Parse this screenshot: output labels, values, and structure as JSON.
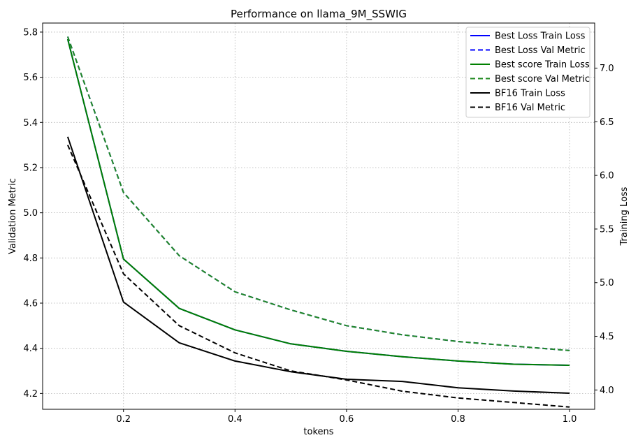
{
  "chart_data": {
    "type": "line",
    "title": "Performance on llama_9M_SSWIG",
    "xlabel": "tokens",
    "ylabel_left": "Validation Metric",
    "ylabel_right": "Training Loss",
    "x": [
      0.1,
      0.2,
      0.3,
      0.4,
      0.5,
      0.6,
      0.7,
      0.8,
      0.9,
      1.0
    ],
    "xlim": [
      0.055,
      1.045
    ],
    "ylim_left": [
      4.13,
      5.84
    ],
    "ylim_right": [
      3.82,
      7.42
    ],
    "x_ticks": [
      0.2,
      0.4,
      0.6,
      0.8,
      1.0
    ],
    "x_tick_labels": [
      "0.2",
      "0.4",
      "0.6",
      "0.8",
      "1.0"
    ],
    "y_ticks_left": [
      4.2,
      4.4,
      4.6,
      4.8,
      5.0,
      5.2,
      5.4,
      5.6,
      5.8
    ],
    "y_tick_labels_left": [
      "4.2",
      "4.4",
      "4.6",
      "4.8",
      "5.0",
      "5.2",
      "5.4",
      "5.6",
      "5.8"
    ],
    "y_ticks_right": [
      4.0,
      4.5,
      5.0,
      5.5,
      6.0,
      6.5,
      7.0
    ],
    "y_tick_labels_right": [
      "4.0",
      "4.5",
      "5.0",
      "5.5",
      "6.0",
      "6.5",
      "7.0"
    ],
    "grid": true,
    "legend_position": "top-right",
    "series": [
      {
        "name": "Best Loss Train Loss",
        "axis": "right",
        "color": "#0000ff",
        "dashed": false,
        "values": [
          7.27,
          5.22,
          4.76,
          4.56,
          4.43,
          4.36,
          4.31,
          4.27,
          4.24,
          4.23
        ]
      },
      {
        "name": "Best Loss Val Metric",
        "axis": "left",
        "color": "#0000ff",
        "dashed": true,
        "values": [
          5.78,
          5.09,
          4.81,
          4.65,
          4.57,
          4.5,
          4.46,
          4.43,
          4.41,
          4.39
        ]
      },
      {
        "name": "Best score Train Loss",
        "axis": "right",
        "color": "#008000",
        "dashed": false,
        "values": [
          7.27,
          5.22,
          4.76,
          4.56,
          4.43,
          4.36,
          4.31,
          4.27,
          4.24,
          4.23
        ]
      },
      {
        "name": "Best score Val Metric",
        "axis": "left",
        "color": "#228b22",
        "dashed": true,
        "values": [
          5.78,
          5.09,
          4.81,
          4.65,
          4.57,
          4.5,
          4.46,
          4.43,
          4.41,
          4.39
        ]
      },
      {
        "name": "BF16 Train Loss",
        "axis": "right",
        "color": "#000000",
        "dashed": false,
        "values": [
          6.36,
          4.82,
          4.44,
          4.27,
          4.17,
          4.1,
          4.08,
          4.02,
          3.99,
          3.97
        ]
      },
      {
        "name": "BF16 Val Metric",
        "axis": "left",
        "color": "#000000",
        "dashed": true,
        "values": [
          5.3,
          4.73,
          4.5,
          4.38,
          4.3,
          4.26,
          4.21,
          4.18,
          4.16,
          4.14
        ]
      }
    ]
  }
}
